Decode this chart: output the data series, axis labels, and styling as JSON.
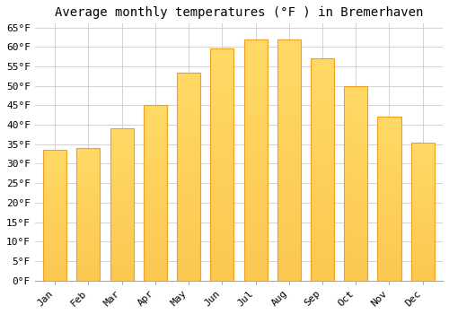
{
  "title": "Average monthly temperatures (°F ) in Bremerhaven",
  "months": [
    "Jan",
    "Feb",
    "Mar",
    "Apr",
    "May",
    "Jun",
    "Jul",
    "Aug",
    "Sep",
    "Oct",
    "Nov",
    "Dec"
  ],
  "values": [
    33.5,
    34.0,
    39.0,
    45.0,
    53.5,
    59.5,
    62.0,
    62.0,
    57.0,
    50.0,
    42.0,
    35.5
  ],
  "bar_color_center": "#FFD966",
  "bar_color_edge": "#F0A020",
  "ylim": [
    0,
    65
  ],
  "ytick_step": 5,
  "background_color": "#FFFFFF",
  "grid_color": "#CCCCCC",
  "title_fontsize": 10,
  "tick_fontsize": 8,
  "font_family": "monospace",
  "bar_width": 0.7
}
